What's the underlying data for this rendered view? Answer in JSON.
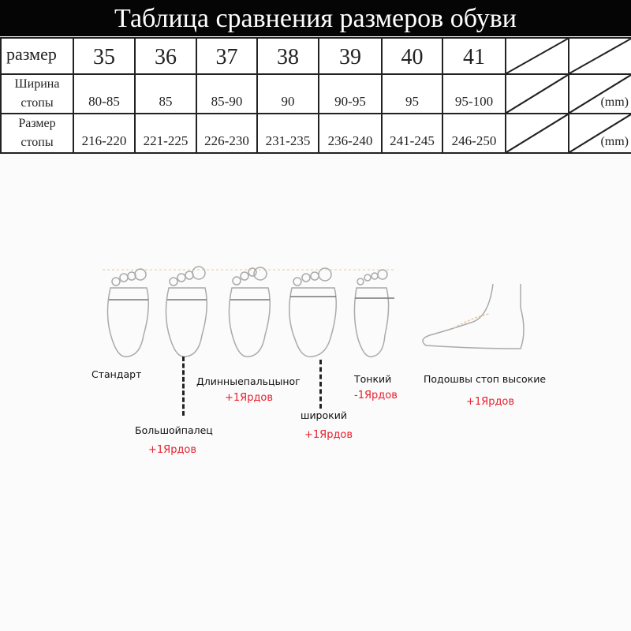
{
  "title": "Таблица сравнения размеров обуви",
  "table": {
    "rows": [
      {
        "header": "размер",
        "values": [
          "35",
          "36",
          "37",
          "38",
          "39",
          "40",
          "41"
        ],
        "unit": ""
      },
      {
        "header": "Ширина стопы",
        "values": [
          "80-85",
          "85",
          "85-90",
          "90",
          "90-95",
          "95",
          "95-100"
        ],
        "unit": "(mm)"
      },
      {
        "header": "Размер стопы",
        "values": [
          "216-220",
          "221-225",
          "226-230",
          "231-235",
          "236-240",
          "241-245",
          "246-250"
        ],
        "unit": "(mm)"
      }
    ]
  },
  "foot_types": [
    {
      "name": "Стандарт",
      "adjust": ""
    },
    {
      "name": "Большойпалец",
      "adjust": "+1Ярдов"
    },
    {
      "name": "Длинныепальцыног",
      "adjust": "+1Ярдов"
    },
    {
      "name": "широкий",
      "adjust": "+1Ярдов"
    },
    {
      "name": "Тонкий",
      "adjust": "-1Ярдов"
    },
    {
      "name": "Подошвы стоп высокие",
      "adjust": "+1Ярдов"
    }
  ],
  "colors": {
    "adjust": "#e8212e",
    "header_bg": "#050505"
  }
}
